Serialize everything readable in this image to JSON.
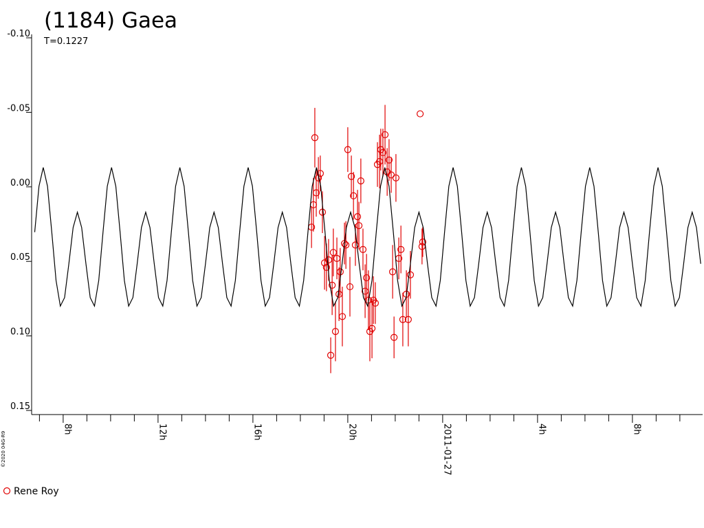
{
  "chart_data": {
    "type": "scatter",
    "title": "(1184) Gaea",
    "subtitle": "T=0.1227",
    "copyright": "©2020 04G-R9",
    "invert_y": true,
    "xlim": [
      6.67,
      34.96
    ],
    "ylim": [
      -0.1,
      0.15
    ],
    "xticks": [
      {
        "value": 8,
        "label": "8h"
      },
      {
        "value": 12,
        "label": "12h"
      },
      {
        "value": 16,
        "label": "16h"
      },
      {
        "value": 20,
        "label": "20h"
      },
      {
        "value": 24,
        "label": "2011-01-27"
      },
      {
        "value": 28,
        "label": "4h"
      },
      {
        "value": 32,
        "label": "8h"
      }
    ],
    "xminorticks": [
      7,
      9,
      10,
      11,
      13,
      14,
      15,
      17,
      18,
      19,
      21,
      22,
      23,
      25,
      26,
      27,
      29,
      30,
      31,
      33,
      34
    ],
    "yticks": [
      {
        "value": -0.1,
        "label": "-0.10"
      },
      -0.05,
      {
        "value": 0,
        "label": "0.00"
      },
      {
        "value": 0.05,
        "label": "0.05"
      },
      {
        "value": 0.1,
        "label": "0.10"
      },
      0.15
    ],
    "series": [
      {
        "name": "Rene Roy",
        "type": "scatter",
        "color": "#e00000",
        "x": [
          18.47,
          18.55,
          18.61,
          18.67,
          18.76,
          18.84,
          18.93,
          19.02,
          19.1,
          19.19,
          19.28,
          19.34,
          19.39,
          19.48,
          19.54,
          19.63,
          19.68,
          19.77,
          19.86,
          19.92,
          20.0,
          20.09,
          20.15,
          20.24,
          20.32,
          20.41,
          20.47,
          20.55,
          20.64,
          20.73,
          20.79,
          20.87,
          20.93,
          21.02,
          21.08,
          21.16,
          21.25,
          21.34,
          21.39,
          21.48,
          21.57,
          21.66,
          21.74,
          21.83,
          21.89,
          21.95,
          22.03,
          22.15,
          22.24,
          22.32,
          22.47,
          22.55,
          22.64,
          23.05,
          23.13,
          23.16
        ],
        "y": [
          0.027,
          0.012,
          -0.033,
          0.004,
          -0.006,
          -0.009,
          0.017,
          0.051,
          0.054,
          0.049,
          0.113,
          0.066,
          0.044,
          0.097,
          0.048,
          0.072,
          0.057,
          0.087,
          0.038,
          0.039,
          -0.025,
          0.067,
          -0.007,
          0.006,
          0.039,
          0.02,
          0.026,
          -0.004,
          0.042,
          0.07,
          0.061,
          0.076,
          0.097,
          0.095,
          0.076,
          0.078,
          -0.015,
          -0.017,
          -0.025,
          -0.023,
          -0.035,
          -0.01,
          -0.018,
          -0.008,
          0.057,
          0.101,
          -0.006,
          0.048,
          0.042,
          0.089,
          0.072,
          0.089,
          0.059,
          -0.049,
          0.04,
          0.037
        ],
        "errors": [
          0.014,
          0.018,
          0.02,
          0.016,
          0.014,
          0.012,
          0.014,
          0.018,
          0.016,
          0.014,
          0.012,
          0.02,
          0.016,
          0.02,
          0.014,
          0.018,
          0.016,
          0.02,
          0.014,
          0.016,
          0.015,
          0.02,
          0.014,
          0.016,
          0.014,
          0.018,
          0.016,
          0.015,
          0.014,
          0.018,
          0.016,
          0.02,
          0.02,
          0.02,
          0.016,
          0.014,
          0.015,
          0.018,
          0.014,
          0.016,
          0.02,
          0.016,
          0.014,
          0.012,
          0.018,
          0.014,
          0.016,
          0.014,
          0.016,
          0.018,
          0.016,
          0.018,
          0.016,
          0,
          0.012,
          0.01
        ]
      },
      {
        "type": "line",
        "color": "#000000",
        "x": [
          6.8,
          6.98,
          7.16,
          7.34,
          7.52,
          7.7,
          7.88,
          8.06,
          8.24,
          8.42,
          8.6,
          8.78,
          8.96,
          9.14,
          9.32,
          9.5,
          9.68,
          9.86,
          10.04,
          10.22,
          10.4,
          10.58,
          10.76,
          10.94,
          11.12,
          11.3,
          11.48,
          11.66,
          11.84,
          12.02,
          12.2,
          12.38,
          12.56,
          12.74,
          12.92,
          13.1,
          13.28,
          13.46,
          13.64,
          13.82,
          14,
          14.18,
          14.36,
          14.54,
          14.72,
          14.9,
          15.08,
          15.26,
          15.44,
          15.62,
          15.8,
          15.98,
          16.16,
          16.34,
          16.52,
          16.7,
          16.88,
          17.06,
          17.24,
          17.42,
          17.6,
          17.78,
          17.96,
          18.14,
          18.32,
          18.5,
          18.68,
          18.86,
          19.04,
          19.22,
          19.4,
          19.58,
          19.76,
          19.94,
          20.12,
          20.3,
          20.48,
          20.66,
          20.84,
          21.02,
          21.2,
          21.38,
          21.56,
          21.74,
          21.92,
          22.1,
          22.28,
          22.46,
          22.64,
          22.82,
          23,
          23.18,
          23.36,
          23.54,
          23.72,
          23.9,
          24.08,
          24.26,
          24.44,
          24.62,
          24.8,
          24.98,
          25.16,
          25.34,
          25.52,
          25.7,
          25.88,
          26.06,
          26.24,
          26.42,
          26.6,
          26.78,
          26.96,
          27.14,
          27.32,
          27.5,
          27.68,
          27.86,
          28.04,
          28.22,
          28.4,
          28.58,
          28.76,
          28.94,
          29.12,
          29.3,
          29.48,
          29.66,
          29.84,
          30.02,
          30.2,
          30.38,
          30.56,
          30.74,
          30.92,
          31.1,
          31.28,
          31.46,
          31.64,
          31.82,
          32,
          32.18,
          32.36,
          32.54,
          32.72,
          32.9,
          33.08,
          33.26,
          33.44,
          33.62,
          33.8,
          33.98,
          34.16,
          34.34,
          34.52,
          34.7,
          34.88
        ],
        "y": [
          0.0304,
          -0.0004,
          -0.013,
          -0.0004,
          0.0304,
          0.0628,
          0.08,
          0.0743,
          0.0516,
          0.0273,
          0.017,
          0.0273,
          0.0516,
          0.0743,
          0.08,
          0.0628,
          0.0304,
          -0.0004,
          -0.013,
          -0.0004,
          0.0304,
          0.0628,
          0.08,
          0.0743,
          0.0516,
          0.0273,
          0.017,
          0.0273,
          0.0516,
          0.0743,
          0.08,
          0.0628,
          0.0304,
          -0.0004,
          -0.013,
          -0.0004,
          0.0304,
          0.0628,
          0.08,
          0.0743,
          0.0516,
          0.0273,
          0.017,
          0.0273,
          0.0516,
          0.0743,
          0.08,
          0.0628,
          0.0304,
          -0.0004,
          -0.013,
          -0.0004,
          0.0304,
          0.0628,
          0.08,
          0.0743,
          0.0516,
          0.0273,
          0.017,
          0.0273,
          0.0516,
          0.0743,
          0.08,
          0.0628,
          0.0304,
          -0.0004,
          -0.013,
          -0.0004,
          0.0304,
          0.0628,
          0.08,
          0.0743,
          0.0516,
          0.0273,
          0.017,
          0.0273,
          0.0516,
          0.0743,
          0.08,
          0.0628,
          0.0304,
          -0.0004,
          -0.013,
          -0.0004,
          0.0304,
          0.0628,
          0.08,
          0.0743,
          0.0516,
          0.0273,
          0.017,
          0.0273,
          0.0516,
          0.0743,
          0.08,
          0.0628,
          0.0304,
          -0.0004,
          -0.013,
          -0.0004,
          0.0304,
          0.0628,
          0.08,
          0.0743,
          0.0516,
          0.0273,
          0.017,
          0.0273,
          0.0516,
          0.0743,
          0.08,
          0.0628,
          0.0304,
          -0.0004,
          -0.013,
          -0.0004,
          0.0304,
          0.0628,
          0.08,
          0.0743,
          0.0516,
          0.0273,
          0.017,
          0.0273,
          0.0516,
          0.0743,
          0.08,
          0.0628,
          0.0304,
          -0.0004,
          -0.013,
          -0.0004,
          0.0304,
          0.0628,
          0.08,
          0.0743,
          0.0516,
          0.0273,
          0.017,
          0.0273,
          0.0516,
          0.0743,
          0.08,
          0.0628,
          0.0304,
          -0.0004,
          -0.013,
          -0.0004,
          0.0304,
          0.0628,
          0.08,
          0.0743,
          0.0516,
          0.0273,
          0.017,
          0.0273,
          0.0516
        ]
      }
    ]
  }
}
